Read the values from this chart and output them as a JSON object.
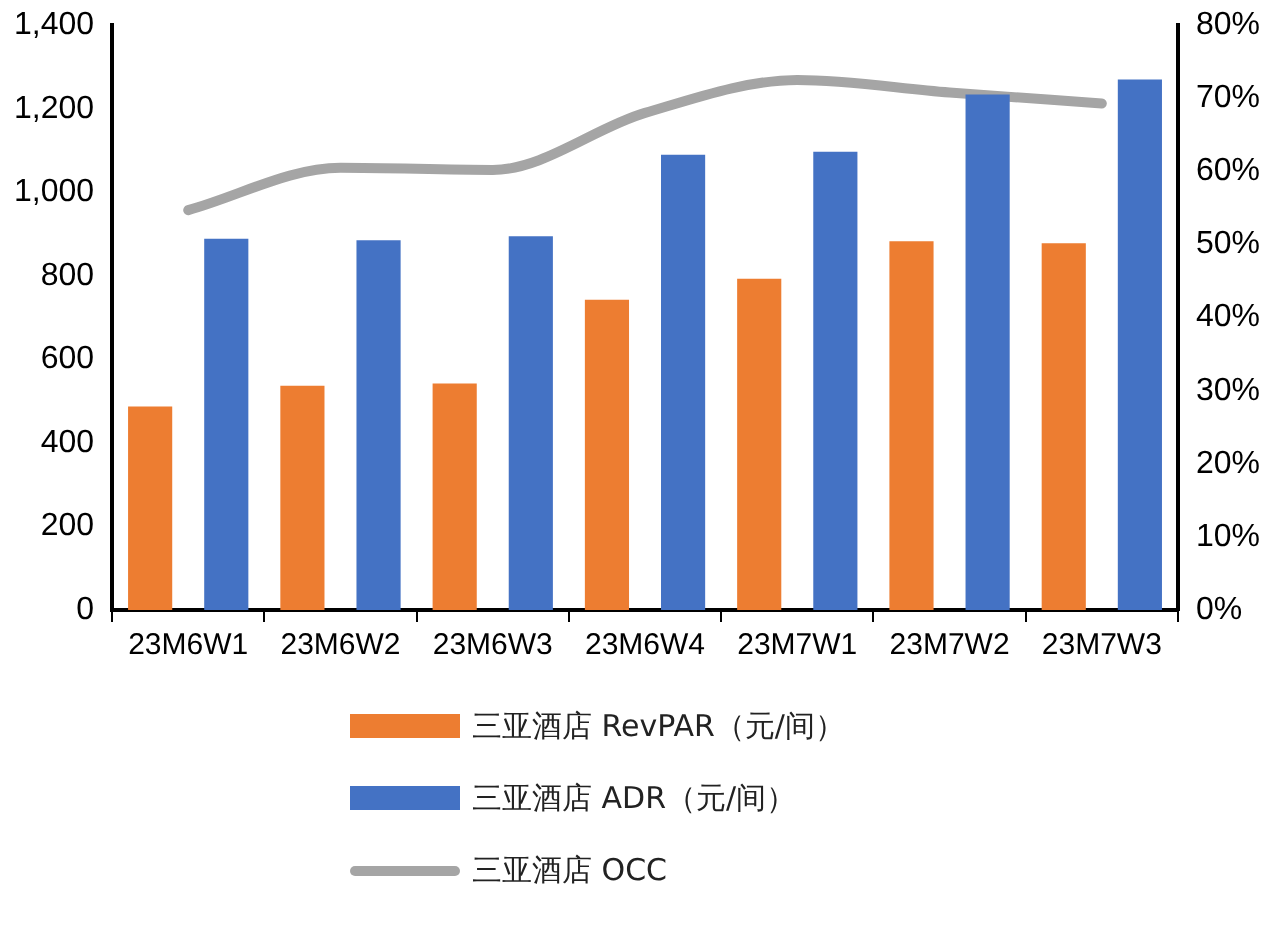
{
  "chart_data": {
    "type": "bar",
    "categories": [
      "23M6W1",
      "23M6W2",
      "23M6W3",
      "23M6W4",
      "23M7W1",
      "23M7W2",
      "23M7W3"
    ],
    "series": [
      {
        "name": "三亚酒店 RevPAR（元/间）",
        "color": "#ed7d31",
        "values": [
          487,
          537,
          542,
          743,
          793,
          883,
          878
        ]
      },
      {
        "name": "三亚酒店 ADR（元/间）",
        "color": "#4472c4",
        "values": [
          889,
          885,
          895,
          1090,
          1097,
          1234,
          1270
        ]
      },
      {
        "name": "三亚酒店 OCC",
        "type": "line",
        "axis": "y2",
        "color": "#a5a5a5",
        "values": [
          54.7,
          60.5,
          60.2,
          68,
          72.5,
          70.8,
          69.3
        ]
      }
    ],
    "ylim": [
      0,
      1400
    ],
    "yticks": [
      0,
      {
        "value": 200,
        "label": "200"
      },
      {
        "value": 400,
        "label": "400"
      },
      {
        "value": 600,
        "label": "600"
      },
      {
        "value": 800,
        "label": "800"
      },
      {
        "value": 1000,
        "label": "1,000"
      },
      {
        "value": 1200,
        "label": "1,200"
      },
      {
        "value": 1400,
        "label": "1,400"
      }
    ],
    "y2lim": [
      0,
      80
    ],
    "y2ticks": [
      {
        "value": 0,
        "label": "0%"
      },
      {
        "value": 10,
        "label": "10%"
      },
      {
        "value": 20,
        "label": "20%"
      },
      {
        "value": 30,
        "label": "30%"
      },
      {
        "value": 40,
        "label": "40%"
      },
      {
        "value": 50,
        "label": "50%"
      },
      {
        "value": 60,
        "label": "60%"
      },
      {
        "value": 70,
        "label": "70%"
      },
      {
        "value": 80,
        "label": "80%"
      }
    ],
    "grid": false,
    "legend": "bottom",
    "marker": "none"
  }
}
